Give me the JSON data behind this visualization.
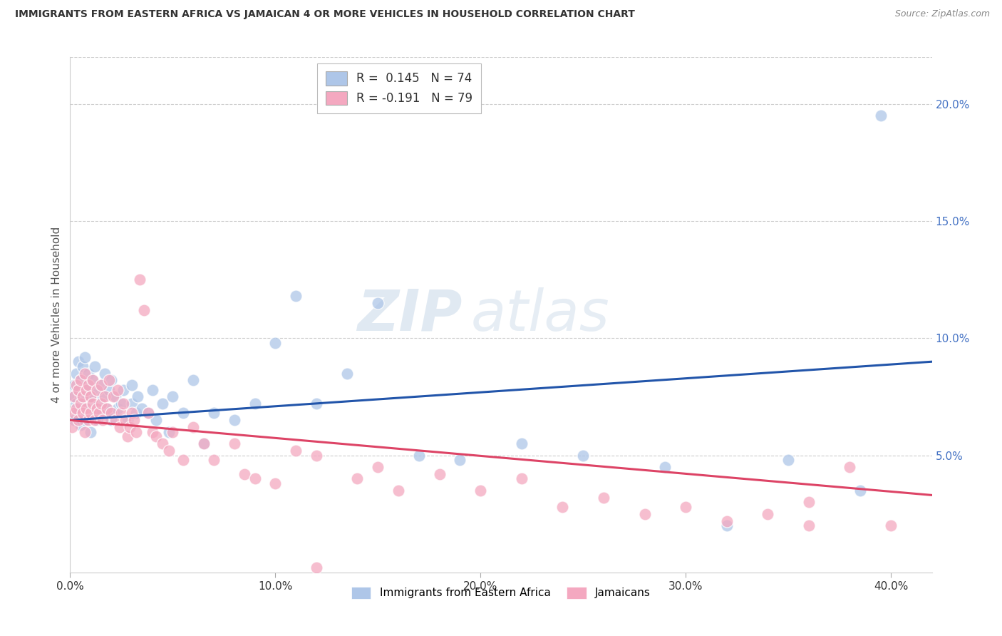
{
  "title": "IMMIGRANTS FROM EASTERN AFRICA VS JAMAICAN 4 OR MORE VEHICLES IN HOUSEHOLD CORRELATION CHART",
  "source": "Source: ZipAtlas.com",
  "xlabel_ticks": [
    "0.0%",
    "10.0%",
    "20.0%",
    "30.0%",
    "40.0%"
  ],
  "xlabel_tick_vals": [
    0.0,
    0.1,
    0.2,
    0.3,
    0.4
  ],
  "ylabel": "4 or more Vehicles in Household",
  "ylabel_right_ticks": [
    "5.0%",
    "10.0%",
    "15.0%",
    "20.0%"
  ],
  "ylabel_right_tick_vals": [
    0.05,
    0.1,
    0.15,
    0.2
  ],
  "ylim": [
    0.0,
    0.22
  ],
  "xlim": [
    0.0,
    0.42
  ],
  "legend_label1": "Immigrants from Eastern Africa",
  "legend_label2": "Jamaicans",
  "R1": 0.145,
  "N1": 74,
  "R2": -0.191,
  "N2": 79,
  "color_blue": "#aec6e8",
  "color_pink": "#f4a8c0",
  "line_color_blue": "#2255aa",
  "line_color_pink": "#dd4466",
  "right_axis_color": "#4472c4",
  "watermark_zip": "ZIP",
  "watermark_atlas": "atlas",
  "blue_line_start_y": 0.065,
  "blue_line_end_y": 0.09,
  "pink_line_start_y": 0.065,
  "pink_line_end_y": 0.033,
  "blue_x": [
    0.001,
    0.002,
    0.002,
    0.003,
    0.003,
    0.004,
    0.004,
    0.004,
    0.005,
    0.005,
    0.005,
    0.006,
    0.006,
    0.007,
    0.007,
    0.007,
    0.008,
    0.008,
    0.009,
    0.009,
    0.01,
    0.01,
    0.011,
    0.011,
    0.012,
    0.012,
    0.013,
    0.013,
    0.014,
    0.015,
    0.015,
    0.016,
    0.017,
    0.018,
    0.019,
    0.02,
    0.02,
    0.021,
    0.022,
    0.023,
    0.025,
    0.026,
    0.028,
    0.03,
    0.03,
    0.032,
    0.033,
    0.035,
    0.038,
    0.04,
    0.042,
    0.045,
    0.048,
    0.05,
    0.055,
    0.06,
    0.065,
    0.07,
    0.08,
    0.09,
    0.1,
    0.11,
    0.12,
    0.135,
    0.15,
    0.17,
    0.19,
    0.22,
    0.25,
    0.29,
    0.32,
    0.35,
    0.385,
    0.395
  ],
  "blue_y": [
    0.075,
    0.08,
    0.065,
    0.072,
    0.085,
    0.068,
    0.078,
    0.09,
    0.063,
    0.075,
    0.082,
    0.07,
    0.088,
    0.065,
    0.078,
    0.092,
    0.068,
    0.08,
    0.072,
    0.085,
    0.06,
    0.075,
    0.068,
    0.082,
    0.07,
    0.088,
    0.065,
    0.078,
    0.072,
    0.068,
    0.08,
    0.075,
    0.085,
    0.07,
    0.078,
    0.065,
    0.082,
    0.068,
    0.075,
    0.07,
    0.072,
    0.078,
    0.065,
    0.08,
    0.072,
    0.068,
    0.075,
    0.07,
    0.068,
    0.078,
    0.065,
    0.072,
    0.06,
    0.075,
    0.068,
    0.082,
    0.055,
    0.068,
    0.065,
    0.072,
    0.098,
    0.118,
    0.072,
    0.085,
    0.115,
    0.05,
    0.048,
    0.055,
    0.05,
    0.045,
    0.02,
    0.048,
    0.035,
    0.195
  ],
  "pink_x": [
    0.001,
    0.002,
    0.002,
    0.003,
    0.003,
    0.004,
    0.004,
    0.005,
    0.005,
    0.006,
    0.006,
    0.007,
    0.007,
    0.008,
    0.008,
    0.009,
    0.009,
    0.01,
    0.01,
    0.011,
    0.011,
    0.012,
    0.013,
    0.013,
    0.014,
    0.015,
    0.015,
    0.016,
    0.017,
    0.018,
    0.019,
    0.02,
    0.021,
    0.022,
    0.023,
    0.024,
    0.025,
    0.026,
    0.027,
    0.028,
    0.029,
    0.03,
    0.031,
    0.032,
    0.034,
    0.036,
    0.038,
    0.04,
    0.042,
    0.045,
    0.048,
    0.05,
    0.055,
    0.06,
    0.065,
    0.07,
    0.08,
    0.085,
    0.09,
    0.1,
    0.11,
    0.12,
    0.14,
    0.15,
    0.16,
    0.18,
    0.2,
    0.22,
    0.24,
    0.26,
    0.28,
    0.3,
    0.32,
    0.34,
    0.36,
    0.38,
    0.4,
    0.36,
    0.12
  ],
  "pink_y": [
    0.062,
    0.068,
    0.075,
    0.07,
    0.08,
    0.065,
    0.078,
    0.072,
    0.082,
    0.068,
    0.075,
    0.085,
    0.06,
    0.07,
    0.078,
    0.065,
    0.08,
    0.068,
    0.075,
    0.072,
    0.082,
    0.065,
    0.07,
    0.078,
    0.068,
    0.072,
    0.08,
    0.065,
    0.075,
    0.07,
    0.082,
    0.068,
    0.075,
    0.065,
    0.078,
    0.062,
    0.068,
    0.072,
    0.065,
    0.058,
    0.062,
    0.068,
    0.065,
    0.06,
    0.125,
    0.112,
    0.068,
    0.06,
    0.058,
    0.055,
    0.052,
    0.06,
    0.048,
    0.062,
    0.055,
    0.048,
    0.055,
    0.042,
    0.04,
    0.038,
    0.052,
    0.05,
    0.04,
    0.045,
    0.035,
    0.042,
    0.035,
    0.04,
    0.028,
    0.032,
    0.025,
    0.028,
    0.022,
    0.025,
    0.02,
    0.045,
    0.02,
    0.03,
    0.002
  ]
}
